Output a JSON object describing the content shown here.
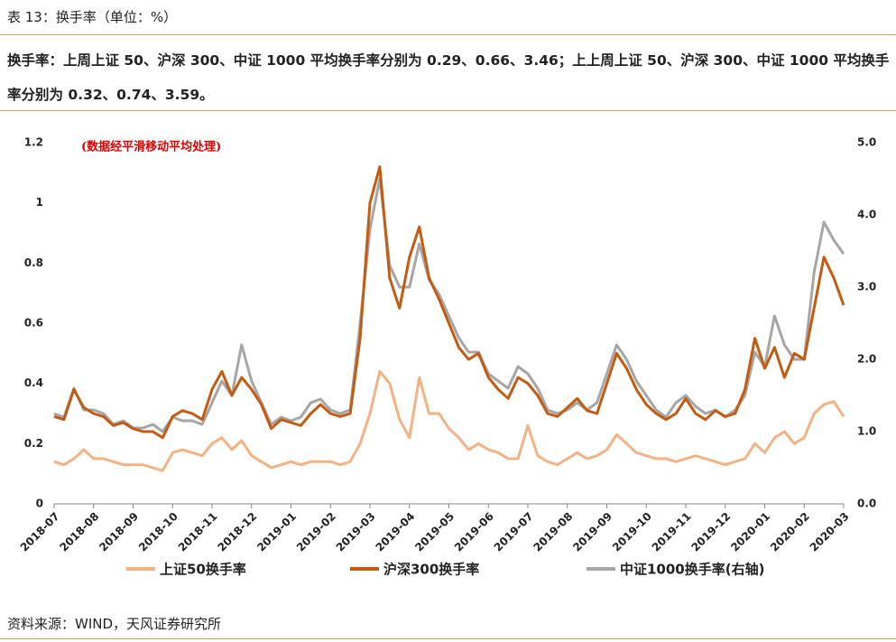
{
  "header": {
    "caption": "表 13：换手率（单位：%）",
    "summary": "换手率：上周上证 50、沪深 300、中证 1000 平均换手率分别为 0.29、0.66、3.46；上上周上证 50、沪深 300、中证 1000 平均换手率分别为 0.32、0.74、3.59。"
  },
  "chart_data": {
    "type": "line",
    "annotation": "(数据经平滑移动平均处理)",
    "legend": "bottom",
    "grid": false,
    "categories": [
      "2018-07",
      null,
      null,
      null,
      "2018-08",
      null,
      null,
      null,
      "2018-09",
      null,
      null,
      null,
      "2018-10",
      null,
      null,
      null,
      "2018-11",
      null,
      null,
      null,
      "2018-12",
      null,
      null,
      null,
      "2019-01",
      null,
      null,
      null,
      "2019-02",
      null,
      null,
      null,
      "2019-03",
      null,
      null,
      null,
      "2019-04",
      null,
      null,
      null,
      "2019-05",
      null,
      null,
      null,
      "2019-06",
      null,
      null,
      null,
      "2019-07",
      null,
      null,
      null,
      "2019-08",
      null,
      null,
      null,
      "2019-09",
      null,
      null,
      null,
      "2019-10",
      null,
      null,
      null,
      "2019-11",
      null,
      null,
      null,
      "2019-12",
      null,
      null,
      null,
      "2020-01",
      null,
      null,
      null,
      "2020-02",
      null,
      null,
      null,
      "2020-03"
    ],
    "ylim": [
      0,
      1.2
    ],
    "yticks": [
      0,
      0.2,
      0.4,
      0.6,
      0.8,
      1,
      1.2
    ],
    "y2lim": [
      0,
      5
    ],
    "y2ticks": [
      {
        "value": 0,
        "label": "0.0"
      },
      {
        "value": 1,
        "label": "1.0"
      },
      {
        "value": 2,
        "label": "2.0"
      },
      {
        "value": 3,
        "label": "3.0"
      },
      {
        "value": 4,
        "label": "4.0"
      },
      {
        "value": 5,
        "label": "5.0"
      }
    ],
    "series": [
      {
        "name": "上证50换手率",
        "color": "#f4b183",
        "values": [
          0.14,
          0.13,
          0.15,
          0.18,
          0.15,
          0.15,
          0.14,
          0.13,
          0.13,
          0.13,
          0.12,
          0.11,
          0.17,
          0.18,
          0.17,
          0.16,
          0.2,
          0.22,
          0.18,
          0.21,
          0.16,
          0.14,
          0.12,
          0.13,
          0.14,
          0.13,
          0.14,
          0.14,
          0.14,
          0.13,
          0.14,
          0.2,
          0.3,
          0.44,
          0.4,
          0.28,
          0.22,
          0.42,
          0.3,
          0.3,
          0.25,
          0.22,
          0.18,
          0.2,
          0.18,
          0.17,
          0.15,
          0.15,
          0.26,
          0.16,
          0.14,
          0.13,
          0.15,
          0.17,
          0.15,
          0.16,
          0.18,
          0.23,
          0.2,
          0.17,
          0.16,
          0.15,
          0.15,
          0.14,
          0.15,
          0.16,
          0.15,
          0.14,
          0.13,
          0.14,
          0.15,
          0.2,
          0.17,
          0.22,
          0.24,
          0.2,
          0.22,
          0.3,
          0.33,
          0.34,
          0.29
        ]
      },
      {
        "name": "沪深300换手率",
        "color": "#c55a11",
        "values": [
          0.29,
          0.28,
          0.38,
          0.32,
          0.3,
          0.29,
          0.26,
          0.27,
          0.25,
          0.24,
          0.24,
          0.22,
          0.29,
          0.31,
          0.3,
          0.28,
          0.38,
          0.44,
          0.36,
          0.42,
          0.38,
          0.33,
          0.25,
          0.28,
          0.27,
          0.26,
          0.3,
          0.33,
          0.3,
          0.29,
          0.3,
          0.55,
          1.0,
          1.12,
          0.75,
          0.65,
          0.82,
          0.92,
          0.75,
          0.68,
          0.6,
          0.52,
          0.48,
          0.5,
          0.42,
          0.38,
          0.35,
          0.42,
          0.4,
          0.36,
          0.3,
          0.29,
          0.32,
          0.35,
          0.31,
          0.3,
          0.4,
          0.5,
          0.45,
          0.38,
          0.33,
          0.3,
          0.28,
          0.3,
          0.35,
          0.3,
          0.28,
          0.31,
          0.29,
          0.3,
          0.38,
          0.55,
          0.45,
          0.52,
          0.42,
          0.5,
          0.48,
          0.65,
          0.82,
          0.75,
          0.66
        ]
      },
      {
        "name": "中证1000换手率(右轴)",
        "color": "#a6a6a6",
        "axis": "y2",
        "values": [
          1.25,
          1.2,
          1.6,
          1.3,
          1.3,
          1.25,
          1.1,
          1.15,
          1.05,
          1.05,
          1.1,
          1.0,
          1.2,
          1.15,
          1.15,
          1.1,
          1.4,
          1.7,
          1.5,
          2.2,
          1.7,
          1.4,
          1.1,
          1.2,
          1.15,
          1.2,
          1.4,
          1.45,
          1.3,
          1.25,
          1.3,
          2.5,
          3.8,
          4.5,
          3.3,
          3.0,
          3.0,
          3.6,
          3.1,
          2.9,
          2.6,
          2.3,
          2.1,
          2.1,
          1.8,
          1.7,
          1.6,
          1.9,
          1.8,
          1.6,
          1.3,
          1.25,
          1.3,
          1.4,
          1.3,
          1.4,
          1.8,
          2.2,
          2.0,
          1.7,
          1.5,
          1.3,
          1.2,
          1.4,
          1.5,
          1.35,
          1.25,
          1.3,
          1.2,
          1.3,
          1.5,
          2.1,
          1.9,
          2.6,
          2.2,
          2.0,
          2.0,
          3.2,
          3.9,
          3.65,
          3.46
        ]
      }
    ]
  },
  "source": "资料来源：WIND，天风证券研究所"
}
